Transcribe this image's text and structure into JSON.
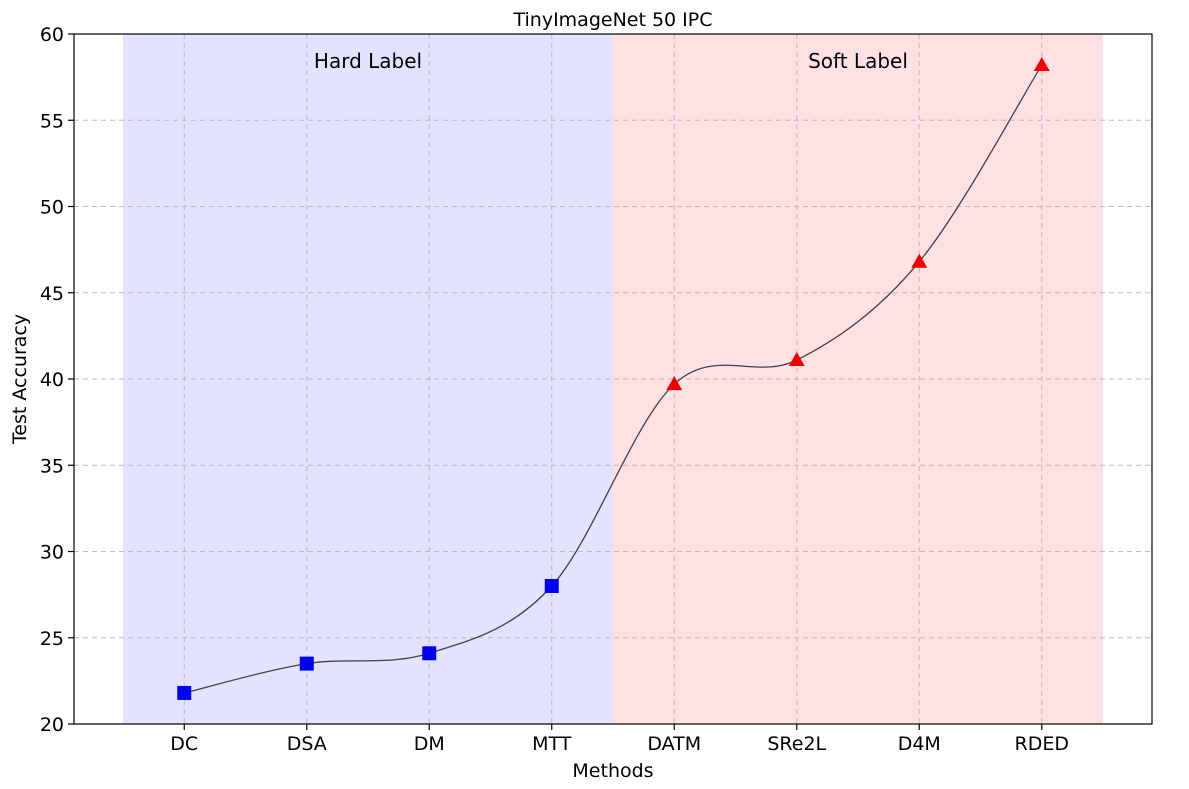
{
  "chart_data": {
    "type": "line",
    "title": "TinyImageNet 50 IPC",
    "xlabel": "Methods",
    "ylabel": "Test Accuracy",
    "categories": [
      "DC",
      "DSA",
      "DM",
      "MTT",
      "DATM",
      "SRe2L",
      "D4M",
      "RDED"
    ],
    "values": [
      21.8,
      23.5,
      24.1,
      28.0,
      39.7,
      41.1,
      46.8,
      58.2
    ],
    "ylim": [
      20,
      60
    ],
    "yticks": [
      20,
      25,
      30,
      35,
      40,
      45,
      50,
      55,
      60
    ],
    "grid": true,
    "regions": [
      {
        "label": "Hard Label",
        "from_index": -0.5,
        "to_index": 3.5,
        "color": "#e3e3ff"
      },
      {
        "label": "Soft Label",
        "from_index": 3.5,
        "to_index": 7.5,
        "color": "#ffe1e3"
      }
    ],
    "markers": {
      "hard": "square",
      "soft": "triangle"
    },
    "colors": {
      "hard_marker": "#0000ee",
      "soft_marker": "#ee0000",
      "line": "#404040"
    }
  }
}
